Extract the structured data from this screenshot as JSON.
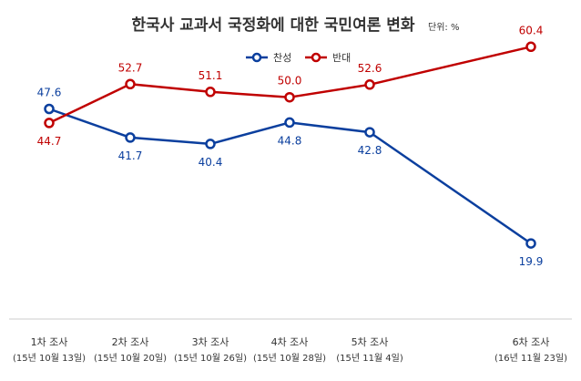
{
  "chart_data": {
    "type": "line",
    "title": "한국사 교과서 국정화에 대한 국민여론 변화",
    "unit": "단위: %",
    "categories": [
      "1차 조사",
      "2차 조사",
      "3차 조사",
      "4차 조사",
      "5차 조사",
      "6차 조사"
    ],
    "subcategories": [
      "(15년 10월 13일)",
      "(15년 10월 20일)",
      "(15년 10월 26일)",
      "(15년 10월 28일)",
      "(15년 11월 4일)",
      "(16년 11월 23일)"
    ],
    "x_dates": [
      "2015-10-13",
      "2015-10-20",
      "2015-10-26",
      "2015-10-28",
      "2015-11-04",
      "2016-11-23"
    ],
    "series": [
      {
        "name": "찬성",
        "color": "#0b3f9e",
        "values": [
          47.6,
          41.7,
          40.4,
          44.8,
          42.8,
          19.9
        ]
      },
      {
        "name": "반대",
        "color": "#c00000",
        "values": [
          44.7,
          52.7,
          51.1,
          50.0,
          52.6,
          60.4
        ]
      }
    ],
    "value_labels": [
      [
        "47.6",
        "41.7",
        "40.4",
        "44.8",
        "42.8",
        "19.9"
      ],
      [
        "44.7",
        "52.7",
        "51.1",
        "50.0",
        "52.6",
        "60.4"
      ]
    ],
    "legend_position": "top-center",
    "grid": false
  }
}
